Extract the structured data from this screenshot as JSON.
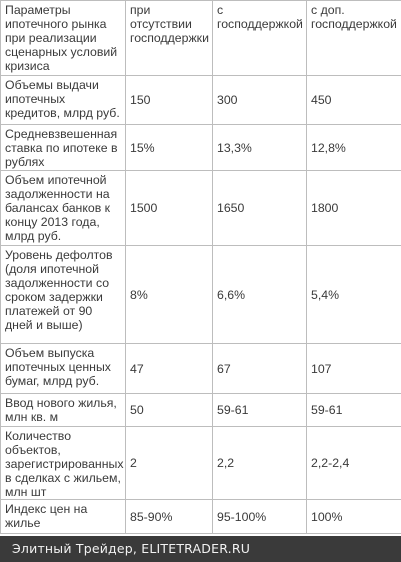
{
  "table": {
    "headers": [
      "Параметры ипотечного рынка при реализации сценарных условий кризиса",
      "при отсутствии господдержки",
      "с господдержкой",
      "с доп. господдержкой"
    ],
    "rows": [
      {
        "param": "Объемы выдачи ипотечных кредитов, млрд руб.",
        "values": [
          "150",
          "300",
          "450"
        ]
      },
      {
        "param": "Средневзвешенная ставка по ипотеке в рублях",
        "values": [
          "15%",
          "13,3%",
          "12,8%"
        ]
      },
      {
        "param": "Объем ипотечной задолженности на балансах банков к концу 2013 года, млрд руб.",
        "values": [
          "1500",
          "1650",
          "1800"
        ]
      },
      {
        "param": "Уровень дефолтов (доля ипотечной задолженности со сроком задержки платежей от 90 дней и выше)",
        "values": [
          "8%",
          "6,6%",
          "5,4%"
        ]
      },
      {
        "param": "Объем выпуска ипотечных ценных бумаг, млрд руб.",
        "values": [
          "47",
          "67",
          "107"
        ]
      },
      {
        "param": "Ввод нового жилья, млн кв. м",
        "values": [
          "50",
          "59-61",
          "59-61"
        ]
      },
      {
        "param": "Количество объектов, зарегистрированных в сделках с жильем, млн шт",
        "values": [
          "2",
          "2,2",
          "2,2-2,4"
        ]
      },
      {
        "param": "Индекс цен на жилье",
        "values": [
          "85-90%",
          "95-100%",
          "100%"
        ]
      }
    ]
  },
  "footer": {
    "text": "Элитный Трейдер, ELITETRADER.RU"
  }
}
